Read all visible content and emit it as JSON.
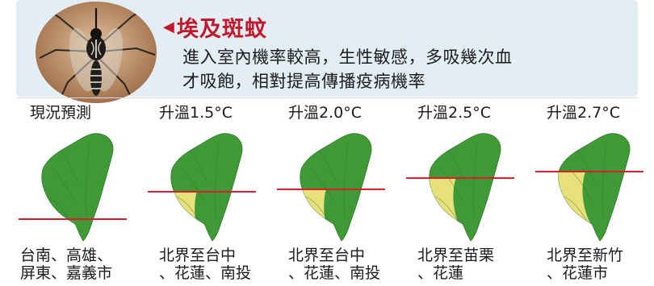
{
  "header": {
    "title": "埃及斑蚊",
    "description_line1": "進入室內機率較高，生性敏感，多吸幾次血",
    "description_line2": "才吸飽，相對提高傳播疫病機率"
  },
  "scenarios": [
    {
      "label": "現況預測",
      "caption_line1": "台南、高雄、",
      "caption_line2": "屏東、嘉義市"
    },
    {
      "label": "升溫1.5°C",
      "caption_line1": "北界至台中",
      "caption_line2": "、花蓮、南投"
    },
    {
      "label": "升溫2.0°C",
      "caption_line1": "北界至台中",
      "caption_line2": "、花蓮、南投"
    },
    {
      "label": "升溫2.5°C",
      "caption_line1": "北界至苗栗",
      "caption_line2": "、花蓮"
    },
    {
      "label": "升溫2.7°C",
      "caption_line1": "北界至新竹",
      "caption_line2": "、花蓮市"
    }
  ],
  "colors": {
    "land": "#3f9a36",
    "habitat": "#e8e07a",
    "boundary_line": "#d81f2a",
    "header_bg": "#e3edf4",
    "title": "#c0192b"
  },
  "icons": {
    "mosquito_photo": "mosquito-photo",
    "title_marker": "left-triangle-icon",
    "map": "taiwan-map-icon"
  }
}
